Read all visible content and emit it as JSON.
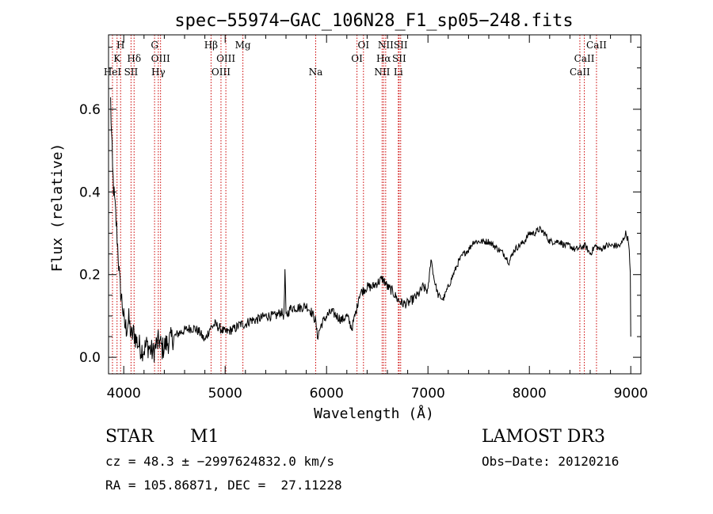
{
  "chart_data": {
    "type": "line",
    "title": "spec−55974−GAC_106N28_F1_sp05−248.fits",
    "xlabel": "Wavelength (Å)",
    "ylabel": "Flux (relative)",
    "xlim": [
      3850,
      9100
    ],
    "ylim": [
      -0.04,
      0.78
    ],
    "xticks": [
      4000,
      5000,
      6000,
      7000,
      8000,
      9000
    ],
    "xtick_labels": [
      "4000",
      "5000",
      "6000",
      "7000",
      "8000",
      "9000"
    ],
    "yticks": [
      0.0,
      0.2,
      0.4,
      0.6
    ],
    "ytick_labels": [
      "0.0",
      "0.2",
      "0.4",
      "0.6"
    ],
    "series": [
      {
        "name": "spectrum",
        "color": "#000000",
        "x": [
          3870,
          3890,
          3905,
          3915,
          3930,
          3945,
          3960,
          3975,
          3990,
          4005,
          4025,
          4050,
          4075,
          4100,
          4125,
          4150,
          4175,
          4200,
          4230,
          4260,
          4290,
          4320,
          4350,
          4380,
          4410,
          4450,
          4500,
          4550,
          4600,
          4650,
          4700,
          4750,
          4800,
          4850,
          4900,
          4950,
          5000,
          5050,
          5100,
          5150,
          5200,
          5250,
          5300,
          5350,
          5400,
          5450,
          5500,
          5550,
          5580,
          5590,
          5600,
          5650,
          5700,
          5750,
          5800,
          5850,
          5890,
          5910,
          5950,
          6000,
          6050,
          6100,
          6150,
          6200,
          6250,
          6280,
          6300,
          6320,
          6350,
          6400,
          6450,
          6500,
          6550,
          6580,
          6600,
          6650,
          6700,
          6750,
          6800,
          6850,
          6900,
          6950,
          7000,
          7030,
          7060,
          7100,
          7150,
          7200,
          7250,
          7300,
          7350,
          7400,
          7450,
          7500,
          7550,
          7600,
          7650,
          7700,
          7750,
          7800,
          7850,
          7900,
          7950,
          8000,
          8050,
          8100,
          8150,
          8200,
          8250,
          8300,
          8350,
          8400,
          8450,
          8500,
          8550,
          8600,
          8650,
          8700,
          8750,
          8800,
          8850,
          8900,
          8950,
          8980,
          8995,
          9000
        ],
        "y": [
          0.62,
          0.45,
          0.39,
          0.36,
          0.31,
          0.25,
          0.18,
          0.15,
          0.12,
          0.08,
          0.07,
          0.09,
          0.05,
          0.06,
          0.04,
          0.03,
          0.02,
          0.02,
          0.03,
          0.02,
          0.01,
          0.03,
          0.04,
          0.02,
          0.03,
          0.04,
          0.05,
          0.06,
          0.065,
          0.07,
          0.07,
          0.06,
          0.04,
          0.07,
          0.08,
          0.07,
          0.06,
          0.065,
          0.07,
          0.08,
          0.08,
          0.09,
          0.09,
          0.095,
          0.1,
          0.1,
          0.1,
          0.11,
          0.1,
          0.21,
          0.1,
          0.12,
          0.12,
          0.12,
          0.125,
          0.11,
          0.09,
          0.05,
          0.08,
          0.1,
          0.11,
          0.1,
          0.09,
          0.1,
          0.07,
          0.1,
          0.12,
          0.15,
          0.16,
          0.17,
          0.17,
          0.18,
          0.19,
          0.18,
          0.17,
          0.16,
          0.14,
          0.13,
          0.13,
          0.14,
          0.15,
          0.17,
          0.16,
          0.24,
          0.19,
          0.15,
          0.14,
          0.17,
          0.2,
          0.23,
          0.25,
          0.26,
          0.28,
          0.28,
          0.28,
          0.28,
          0.27,
          0.26,
          0.25,
          0.23,
          0.26,
          0.27,
          0.28,
          0.3,
          0.3,
          0.31,
          0.3,
          0.28,
          0.28,
          0.28,
          0.27,
          0.27,
          0.26,
          0.265,
          0.27,
          0.25,
          0.27,
          0.26,
          0.27,
          0.27,
          0.27,
          0.27,
          0.3,
          0.28,
          0.2,
          0.05
        ]
      }
    ],
    "lines": [
      {
        "wave": 3889,
        "label": "HeI",
        "row": 3
      },
      {
        "wave": 3934,
        "label": "K",
        "row": 2
      },
      {
        "wave": 3969,
        "label": "H",
        "row": 1
      },
      {
        "wave": 4072,
        "label": "SII",
        "row": 3
      },
      {
        "wave": 4102,
        "label": "Hδ",
        "row": 2
      },
      {
        "wave": 4304,
        "label": "G",
        "row": 1
      },
      {
        "wave": 4341,
        "label": "Hγ",
        "row": 3
      },
      {
        "wave": 4363,
        "label": "OIII",
        "row": 2
      },
      {
        "wave": 4861,
        "label": "Hβ",
        "row": 1
      },
      {
        "wave": 4959,
        "label": "OIII",
        "row": 3
      },
      {
        "wave": 5007,
        "label": "OIII",
        "row": 2
      },
      {
        "wave": 5175,
        "label": "Mg",
        "row": 1
      },
      {
        "wave": 5893,
        "label": "Na",
        "row": 3
      },
      {
        "wave": 6300,
        "label": "OI",
        "row": 2
      },
      {
        "wave": 6364,
        "label": "OI",
        "row": 1
      },
      {
        "wave": 6548,
        "label": "NII",
        "row": 3
      },
      {
        "wave": 6563,
        "label": "Hα",
        "row": 2
      },
      {
        "wave": 6583,
        "label": "NII",
        "row": 1
      },
      {
        "wave": 6708,
        "label": "Li",
        "row": 3
      },
      {
        "wave": 6716,
        "label": "SII",
        "row": 2
      },
      {
        "wave": 6731,
        "label": "SII",
        "row": 1
      },
      {
        "wave": 8498,
        "label": "CaII",
        "row": 3
      },
      {
        "wave": 8542,
        "label": "CaII",
        "row": 2
      },
      {
        "wave": 8662,
        "label": "CaII",
        "row": 1
      }
    ]
  },
  "info": {
    "object_class": "STAR",
    "subclass": "M1",
    "survey": "LAMOST DR3",
    "cz": "cz = 48.3 ± −2997624832.0 km/s",
    "obs_date": "Obs−Date: 20120216",
    "coords": "RA = 105.86871, DEC =  27.11228"
  },
  "colors": {
    "spectrum": "#000000",
    "line_marker": "#cc0000",
    "axis": "#000000"
  }
}
